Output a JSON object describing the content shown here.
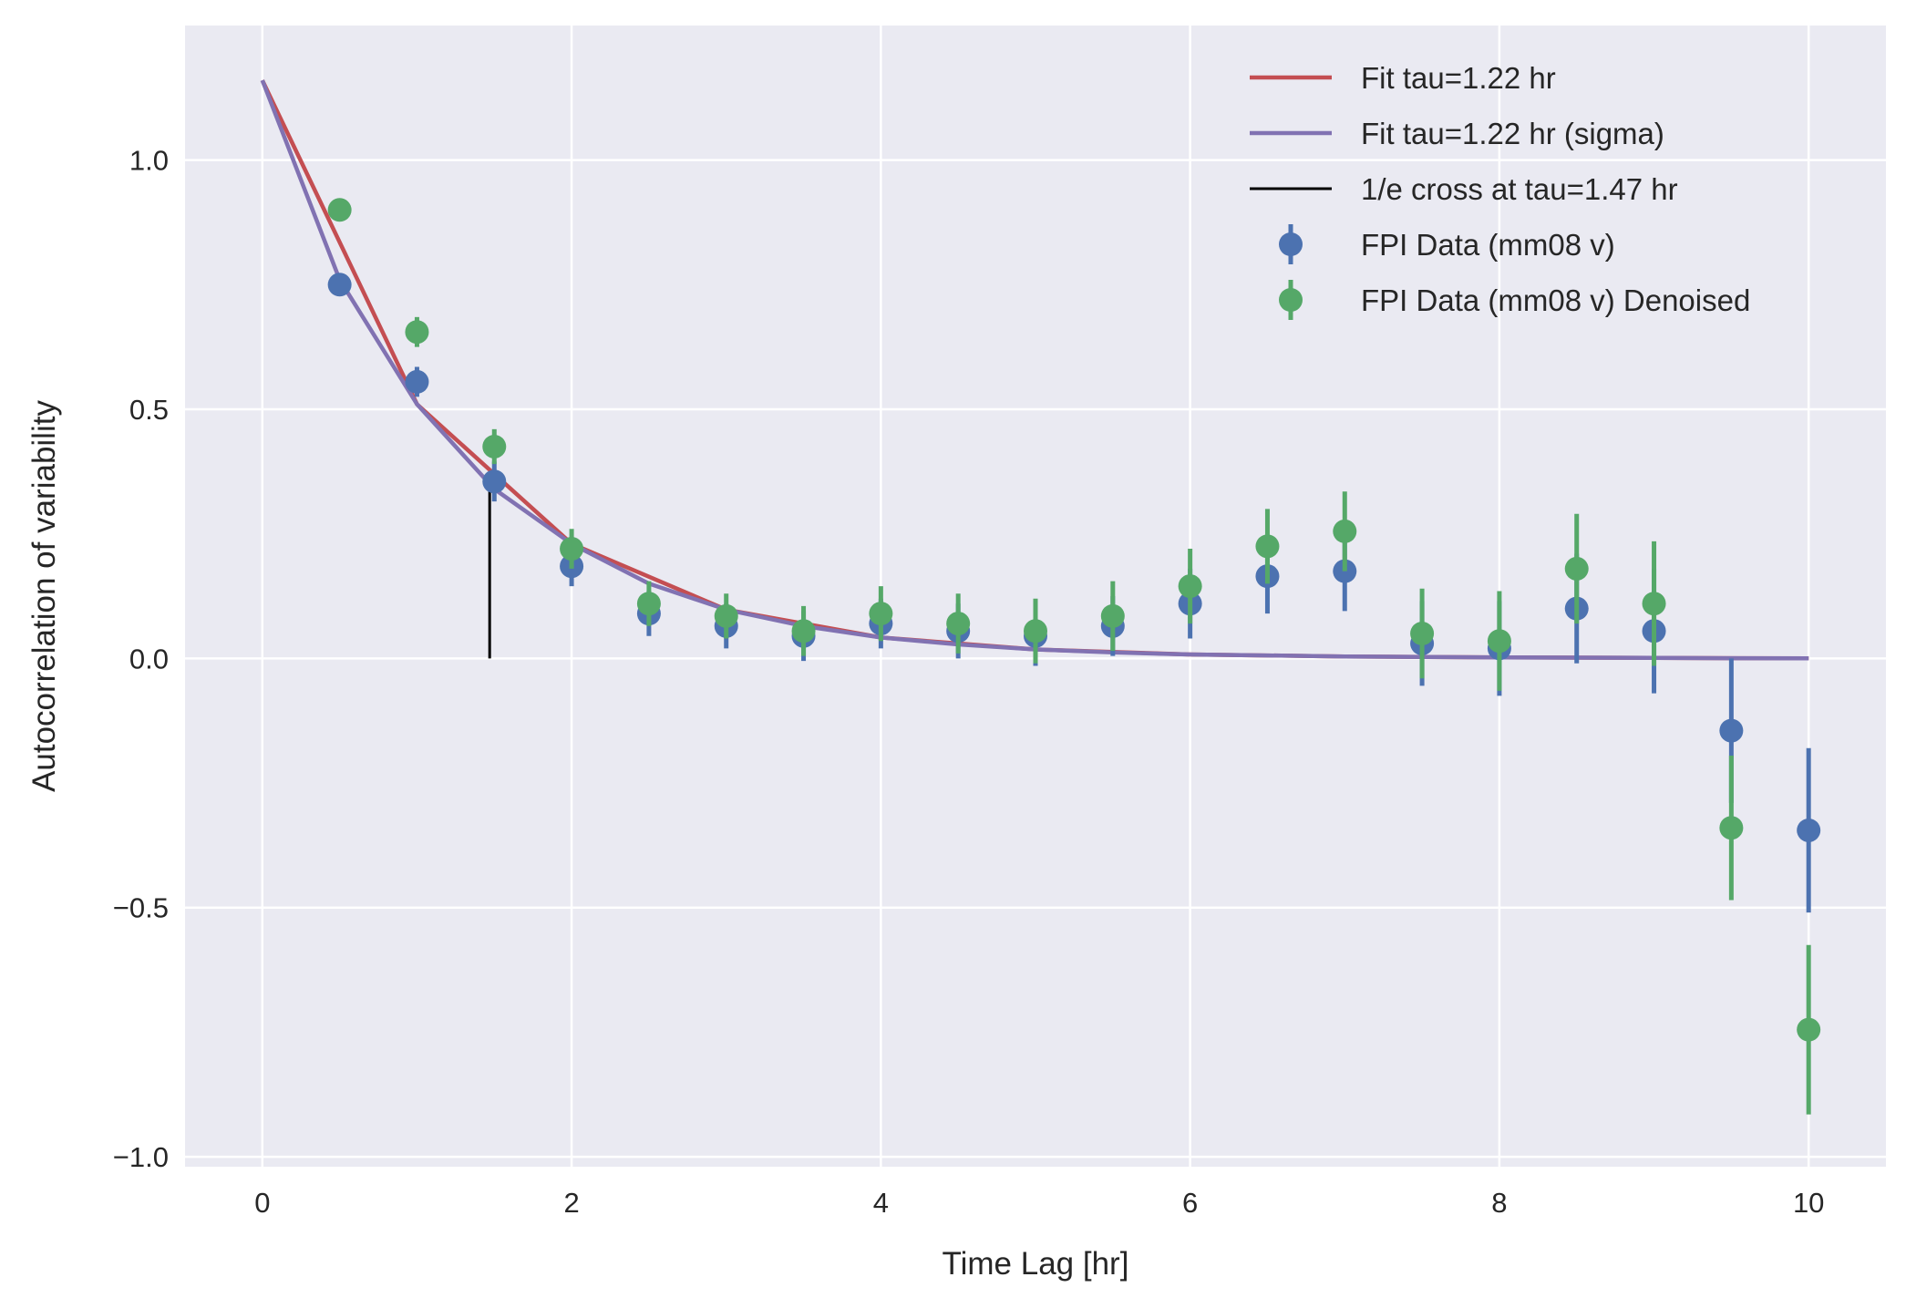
{
  "chart_data": {
    "type": "scatter",
    "xlabel": "Time Lag [hr]",
    "ylabel": "Autocorrelation of variability",
    "xlim": [
      -0.5,
      10.5
    ],
    "ylim": [
      -1.02,
      1.27
    ],
    "xticks": [
      0,
      2,
      4,
      6,
      8,
      10
    ],
    "xtick_labels": [
      "0",
      "2",
      "4",
      "6",
      "8",
      "10"
    ],
    "yticks": [
      1.0,
      0.5,
      0.0,
      -0.5,
      -1.0
    ],
    "ytick_labels": [
      "1.0",
      "0.5",
      "0.0",
      "−0.5",
      "−1.0"
    ],
    "grid": true,
    "legend_position": "top-right",
    "colors": {
      "background": "#eaeaf2",
      "grid": "#ffffff",
      "fit": "#c44e52",
      "fit_sigma": "#8172b2",
      "cross": "#000000",
      "data": "#4c72b0",
      "denoised": "#55a868"
    },
    "fit": {
      "name": "Fit tau=1.22 hr",
      "x": [
        0,
        1,
        2,
        3,
        4,
        5,
        6,
        7,
        8,
        9,
        10
      ],
      "y": [
        1.16,
        0.51,
        0.23,
        0.098,
        0.042,
        0.018,
        0.008,
        0.004,
        0.002,
        0.001,
        0.0
      ]
    },
    "fit_sigma": {
      "name": "Fit tau=1.22 hr (sigma)",
      "x": [
        0,
        0.5,
        1,
        1.5,
        2,
        2.5,
        3,
        3.5,
        4,
        4.5,
        5,
        5.5,
        6,
        6.5,
        7,
        7.5,
        8,
        8.5,
        9,
        9.5,
        10
      ],
      "y": [
        1.16,
        0.76,
        0.51,
        0.34,
        0.23,
        0.15,
        0.098,
        0.065,
        0.042,
        0.028,
        0.018,
        0.012,
        0.008,
        0.006,
        0.004,
        0.003,
        0.002,
        0.0015,
        0.001,
        0.0005,
        0.0
      ]
    },
    "cross": {
      "name": "1/e cross at tau=1.47 hr",
      "x": 1.47,
      "y0": 0.0,
      "y1": 0.35
    },
    "series": [
      {
        "name": "FPI Data (mm08 v)",
        "x": [
          0.5,
          1,
          1.5,
          2,
          2.5,
          3,
          3.5,
          4,
          4.5,
          5,
          5.5,
          6,
          6.5,
          7,
          7.5,
          8,
          8.5,
          9,
          9.5,
          10
        ],
        "y": [
          0.75,
          0.555,
          0.355,
          0.185,
          0.09,
          0.065,
          0.045,
          0.07,
          0.055,
          0.045,
          0.065,
          0.11,
          0.165,
          0.175,
          0.03,
          0.02,
          0.1,
          0.055,
          -0.145,
          -0.345
        ],
        "err": [
          0.02,
          0.03,
          0.04,
          0.04,
          0.045,
          0.045,
          0.05,
          0.05,
          0.055,
          0.06,
          0.06,
          0.07,
          0.075,
          0.08,
          0.085,
          0.095,
          0.11,
          0.125,
          0.145,
          0.165
        ]
      },
      {
        "name": "FPI Data (mm08 v) Denoised",
        "x": [
          0.5,
          1,
          1.5,
          2,
          2.5,
          3,
          3.5,
          4,
          4.5,
          5,
          5.5,
          6,
          6.5,
          7,
          7.5,
          8,
          8.5,
          9,
          9.5,
          10
        ],
        "y": [
          0.9,
          0.655,
          0.425,
          0.22,
          0.11,
          0.085,
          0.055,
          0.09,
          0.07,
          0.055,
          0.085,
          0.145,
          0.225,
          0.255,
          0.05,
          0.035,
          0.18,
          0.11,
          -0.34,
          -0.745
        ],
        "err": [
          0.015,
          0.03,
          0.035,
          0.04,
          0.045,
          0.045,
          0.05,
          0.055,
          0.06,
          0.065,
          0.07,
          0.075,
          0.075,
          0.08,
          0.09,
          0.1,
          0.11,
          0.125,
          0.145,
          0.17
        ]
      }
    ]
  }
}
